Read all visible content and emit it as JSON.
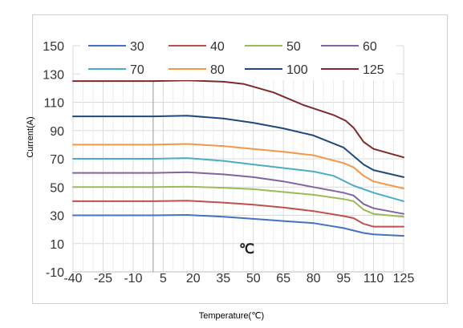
{
  "chart_data": {
    "type": "line",
    "title": "",
    "xlabel": "Temperature(℃)",
    "ylabel": "Current(A)",
    "unit_label": "℃",
    "x": [
      -40,
      -25,
      -10,
      5,
      20,
      35,
      50,
      65,
      80,
      95,
      110,
      125
    ],
    "x_tick_labels": [
      "-40",
      "-25",
      "-10",
      "5",
      "20",
      "35",
      "50",
      "65",
      "80",
      "95",
      "110",
      "125"
    ],
    "y_ticks": [
      -10,
      10,
      30,
      50,
      70,
      90,
      110,
      130,
      150
    ],
    "y_tick_labels": [
      "-10",
      "10",
      "30",
      "50",
      "70",
      "90",
      "110",
      "130",
      "150"
    ],
    "ylim": [
      -10,
      150
    ],
    "grid": true,
    "legend_position": "top",
    "series": [
      {
        "name": "30",
        "color": "#4472c4",
        "points": [
          [
            -40,
            30
          ],
          [
            0,
            30
          ],
          [
            17,
            30.3
          ],
          [
            35,
            29
          ],
          [
            50,
            27.5
          ],
          [
            65,
            26
          ],
          [
            80,
            24.5
          ],
          [
            95,
            21
          ],
          [
            105,
            17.5
          ],
          [
            110,
            16.5
          ],
          [
            125,
            15.5
          ]
        ]
      },
      {
        "name": "40",
        "color": "#c0504d",
        "points": [
          [
            -40,
            40
          ],
          [
            0,
            40
          ],
          [
            17,
            40.3
          ],
          [
            35,
            39
          ],
          [
            50,
            37.5
          ],
          [
            65,
            35.5
          ],
          [
            80,
            33
          ],
          [
            95,
            29.5
          ],
          [
            100,
            28
          ],
          [
            105,
            24
          ],
          [
            110,
            22
          ],
          [
            125,
            22
          ]
        ]
      },
      {
        "name": "50",
        "color": "#9bbb59",
        "points": [
          [
            -40,
            50
          ],
          [
            0,
            50
          ],
          [
            17,
            50.3
          ],
          [
            35,
            49.5
          ],
          [
            50,
            48.5
          ],
          [
            65,
            46.5
          ],
          [
            80,
            44.5
          ],
          [
            95,
            41.5
          ],
          [
            100,
            40
          ],
          [
            105,
            34
          ],
          [
            110,
            31
          ],
          [
            125,
            29
          ]
        ]
      },
      {
        "name": "60",
        "color": "#8064a2",
        "points": [
          [
            -40,
            60
          ],
          [
            0,
            60
          ],
          [
            17,
            60.5
          ],
          [
            35,
            59
          ],
          [
            50,
            57
          ],
          [
            65,
            54
          ],
          [
            80,
            50
          ],
          [
            95,
            46
          ],
          [
            100,
            44
          ],
          [
            105,
            38
          ],
          [
            110,
            35
          ],
          [
            125,
            31
          ]
        ]
      },
      {
        "name": "70",
        "color": "#4bacc6",
        "points": [
          [
            -40,
            70
          ],
          [
            0,
            70
          ],
          [
            17,
            70.5
          ],
          [
            35,
            68.5
          ],
          [
            50,
            66
          ],
          [
            65,
            63.5
          ],
          [
            80,
            61
          ],
          [
            90,
            58
          ],
          [
            100,
            51
          ],
          [
            110,
            46
          ],
          [
            125,
            40
          ]
        ]
      },
      {
        "name": "80",
        "color": "#f79646",
        "points": [
          [
            -40,
            80
          ],
          [
            0,
            80
          ],
          [
            17,
            80.5
          ],
          [
            35,
            79
          ],
          [
            50,
            77
          ],
          [
            65,
            75
          ],
          [
            80,
            72.5
          ],
          [
            95,
            67
          ],
          [
            100,
            64
          ],
          [
            105,
            58
          ],
          [
            110,
            54
          ],
          [
            125,
            49
          ]
        ]
      },
      {
        "name": "100",
        "color": "#1f497d",
        "points": [
          [
            -40,
            100
          ],
          [
            0,
            100
          ],
          [
            17,
            100.5
          ],
          [
            35,
            98.5
          ],
          [
            50,
            95.5
          ],
          [
            65,
            91.5
          ],
          [
            80,
            86.5
          ],
          [
            95,
            78
          ],
          [
            100,
            72
          ],
          [
            105,
            66
          ],
          [
            110,
            62
          ],
          [
            125,
            57
          ]
        ]
      },
      {
        "name": "125",
        "color": "#7f2a2a",
        "points": [
          [
            -40,
            125
          ],
          [
            0,
            125
          ],
          [
            17,
            125.5
          ],
          [
            35,
            124.5
          ],
          [
            45,
            123
          ],
          [
            60,
            117
          ],
          [
            75,
            108
          ],
          [
            90,
            101
          ],
          [
            96,
            97
          ],
          [
            100,
            92
          ],
          [
            105,
            82
          ],
          [
            110,
            77
          ],
          [
            125,
            71
          ]
        ]
      }
    ]
  }
}
